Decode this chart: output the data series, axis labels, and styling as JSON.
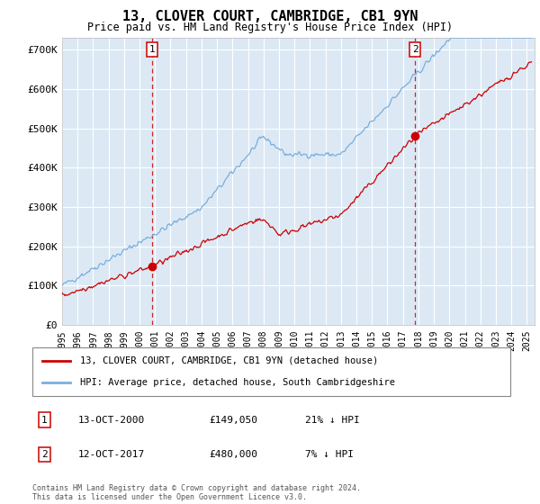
{
  "title": "13, CLOVER COURT, CAMBRIDGE, CB1 9YN",
  "subtitle": "Price paid vs. HM Land Registry's House Price Index (HPI)",
  "ylabel_ticks": [
    "£0",
    "£100K",
    "£200K",
    "£300K",
    "£400K",
    "£500K",
    "£600K",
    "£700K"
  ],
  "ytick_values": [
    0,
    100000,
    200000,
    300000,
    400000,
    500000,
    600000,
    700000
  ],
  "ylim": [
    0,
    730000
  ],
  "xlim_start": 1995.0,
  "xlim_end": 2025.5,
  "bg_color": "#dce9f5",
  "red_line_color": "#cc0000",
  "blue_line_color": "#7aaedc",
  "marker1_x": 2000.79,
  "marker1_y": 149050,
  "marker2_x": 2017.79,
  "marker2_y": 480000,
  "grid_color": "#ffffff",
  "dashed_line_color": "#cc0000",
  "legend_label_red": "13, CLOVER COURT, CAMBRIDGE, CB1 9YN (detached house)",
  "legend_label_blue": "HPI: Average price, detached house, South Cambridgeshire",
  "annotation1": [
    "1",
    "13-OCT-2000",
    "£149,050",
    "21% ↓ HPI"
  ],
  "annotation2": [
    "2",
    "12-OCT-2017",
    "£480,000",
    "7% ↓ HPI"
  ],
  "footer": "Contains HM Land Registry data © Crown copyright and database right 2024.\nThis data is licensed under the Open Government Licence v3.0."
}
